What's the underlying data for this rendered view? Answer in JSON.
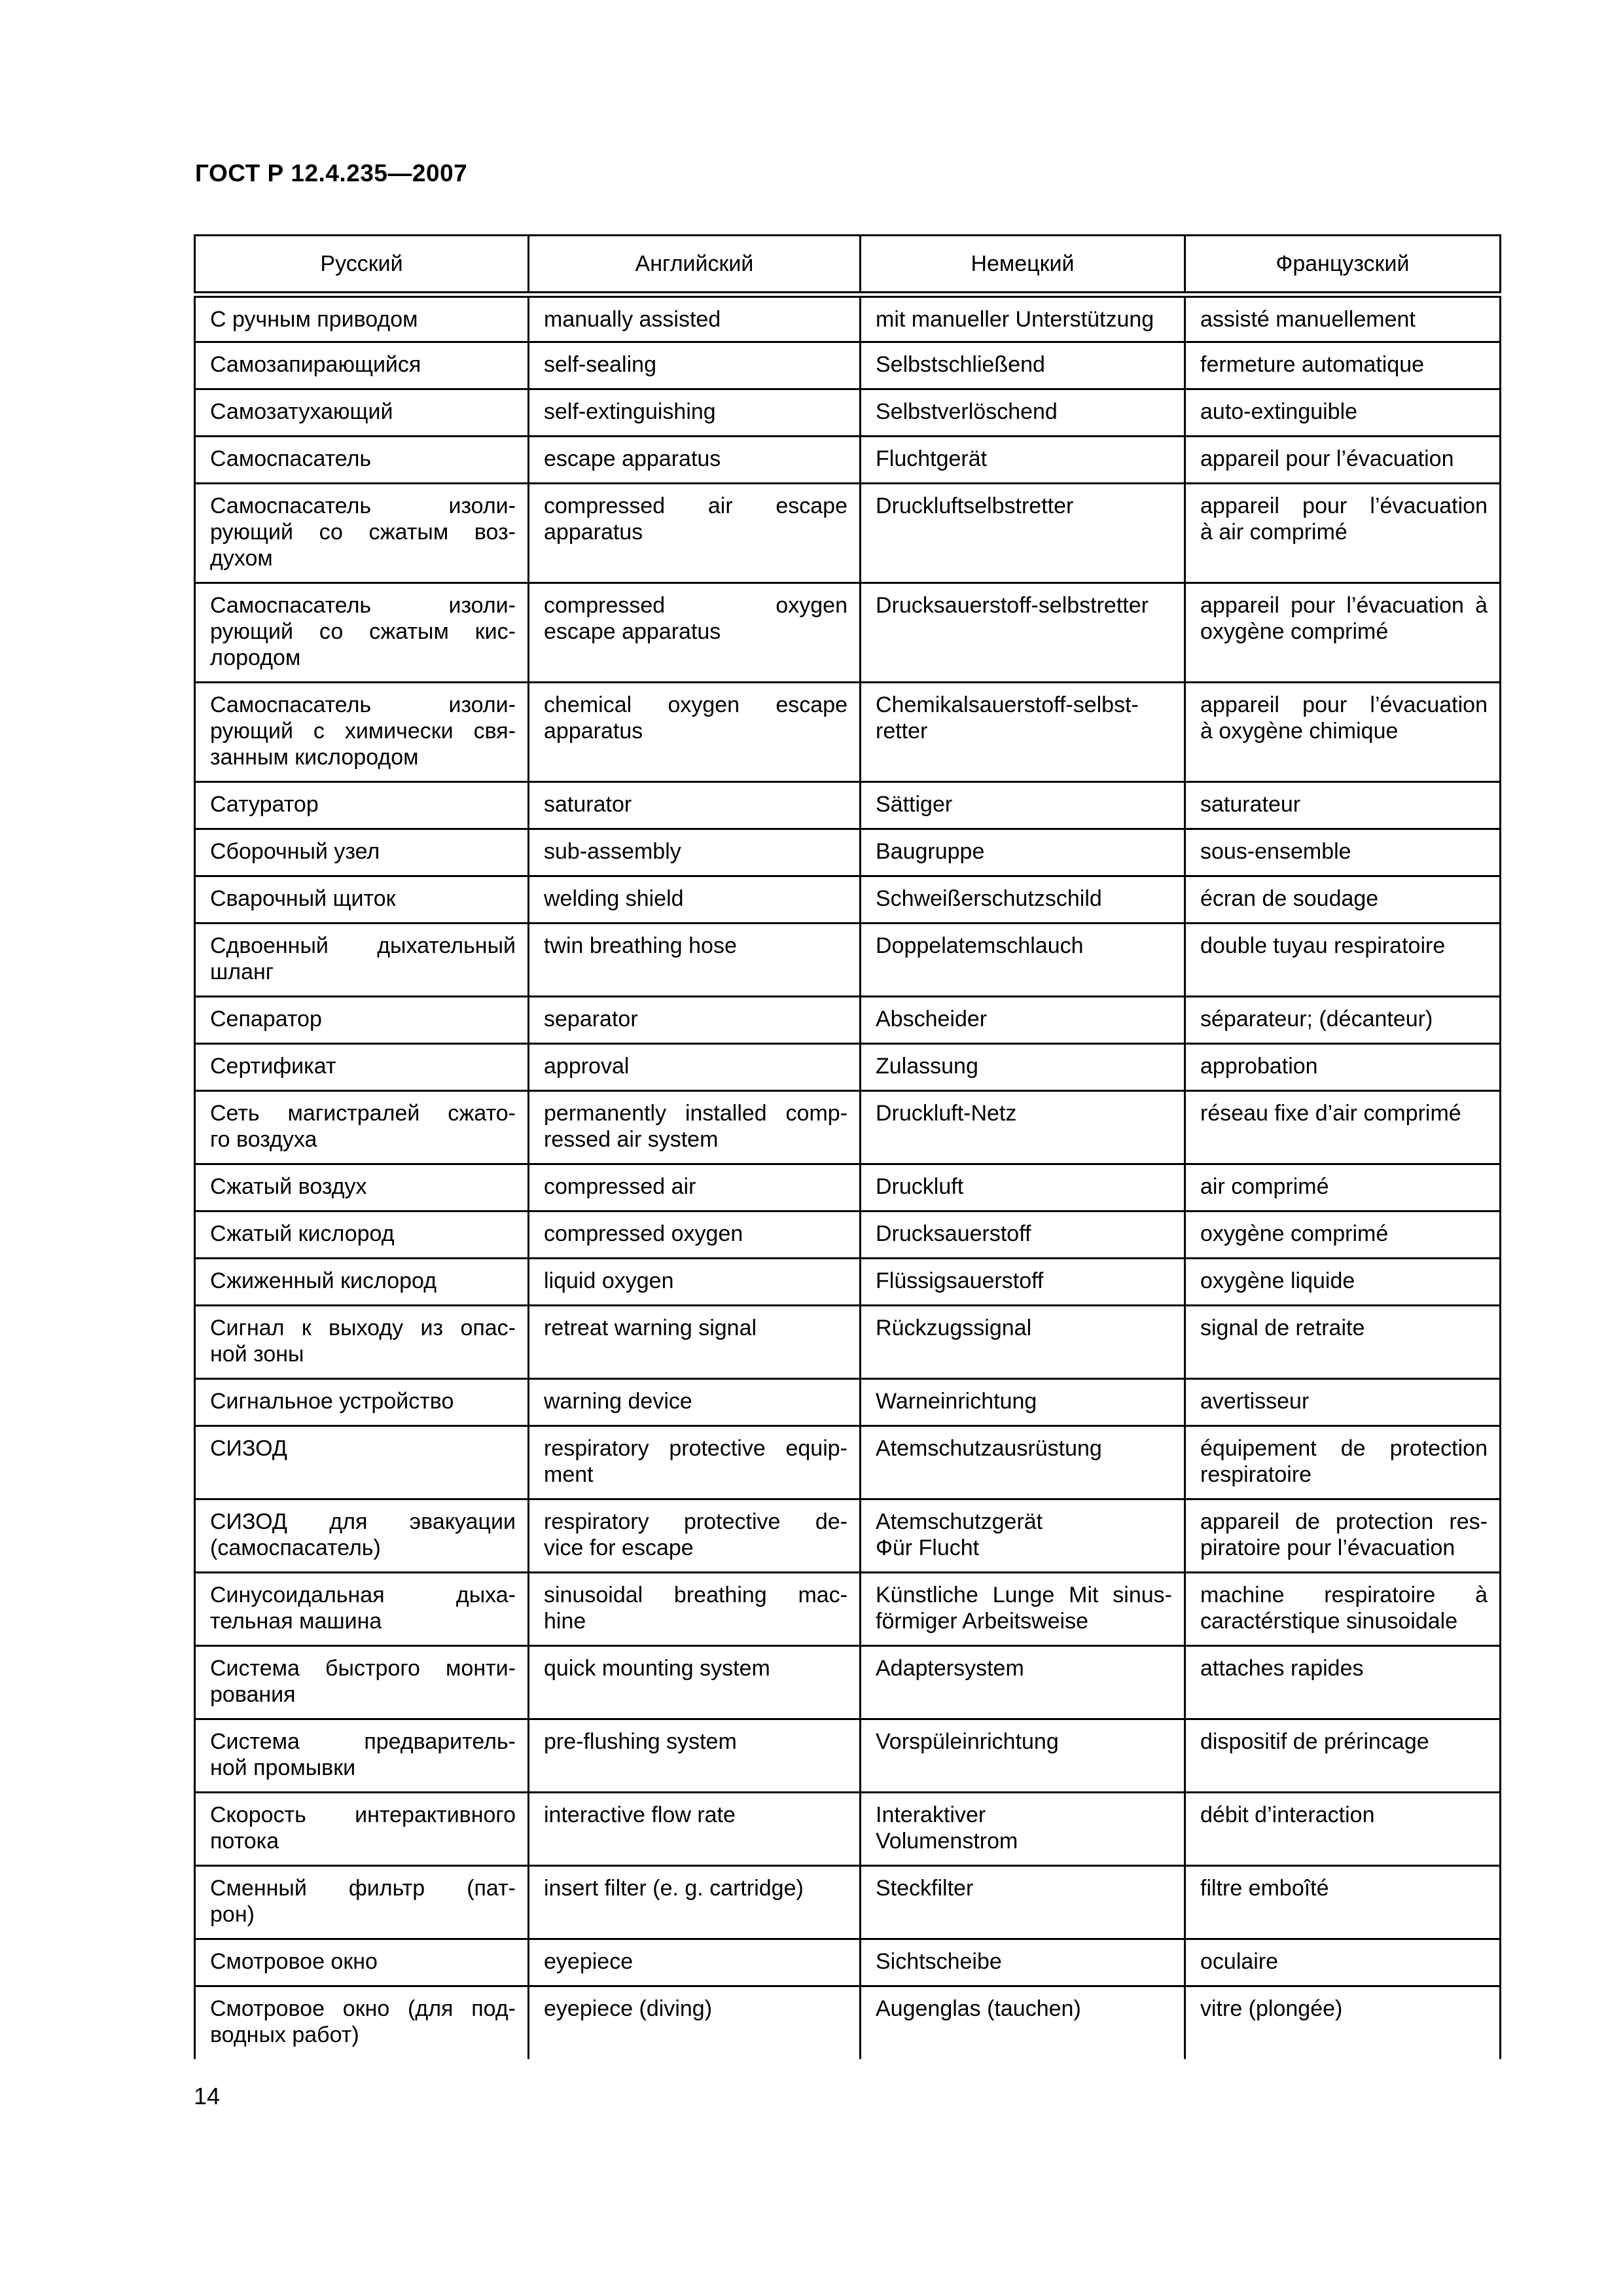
{
  "page": {
    "title": "ГОСТ Р 12.4.235—2007",
    "number": "14"
  },
  "table": {
    "headers": [
      "Русский",
      "Английский",
      "Немецкий",
      "Французский"
    ],
    "rows": [
      [
        "С ручным приводом",
        "manually assisted",
        "mit manueller Unterstützung",
        "assisté manuellement"
      ],
      [
        "Самозапирающийся",
        "self-sealing",
        "Selbstschließend",
        "fermeture automatique"
      ],
      [
        "Самозатухающий",
        "self-extinguishing",
        "Selbstverlöschend",
        "auto-extinguible"
      ],
      [
        "Самоспасатель",
        "escape apparatus",
        "Fluchtgerät",
        "appareil pour l’évacuation"
      ],
      [
        "Самоспасатель изоли-\nрующий со сжатым воз-\nдухом",
        "compressed air escape\napparatus",
        "Druckluftselbstretter",
        "appareil pour l’évacuation\nà air comprimé"
      ],
      [
        "Самоспасатель изоли-\nрующий со сжатым кис-\nлородом",
        "compressed oxygen\nescape apparatus",
        "Drucksauerstoff-selbstretter",
        "appareil pour l’évacuation à\noxygène comprimé"
      ],
      [
        "Самоспасатель изоли-\nрующий с химически свя-\nзанным кислородом",
        "chemical oxygen escape\napparatus",
        "Chemikalsauerstoff-selbst-\nretter",
        "appareil pour l’évacuation\nà oxygène chimique"
      ],
      [
        "Сатуратор",
        "saturator",
        "Sättiger",
        "saturateur"
      ],
      [
        "Сборочный узел",
        "sub-assembly",
        "Baugruppe",
        "sous-ensemble"
      ],
      [
        "Сварочный щиток",
        "welding shield",
        "Schweißerschutzschild",
        "écran de soudage"
      ],
      [
        "Сдвоенный дыхательный\nшланг",
        "twin breathing hose",
        "Doppelatemschlauch",
        "double tuyau respiratoire"
      ],
      [
        "Сепаратор",
        "separator",
        "Abscheider",
        "séparateur; (décanteur)"
      ],
      [
        "Сертификат",
        "approval",
        "Zulassung",
        "approbation"
      ],
      [
        "Сеть магистралей сжато-\nго воздуха",
        "permanently installed comp-\nressed air system",
        "Druckluft-Netz",
        "réseau fixe d’air comprimé"
      ],
      [
        "Сжатый воздух",
        "compressed air",
        "Druckluft",
        "air comprimé"
      ],
      [
        "Сжатый кислород",
        "compressed oxygen",
        "Drucksauerstoff",
        "oxygène comprimé"
      ],
      [
        "Сжиженный кислород",
        "liquid oxygen",
        "Flüssigsauerstoff",
        "oxygène liquide"
      ],
      [
        "Сигнал к выходу из опас-\nной зоны",
        "retreat warning signal",
        "Rückzugssignal",
        "signal de retraite"
      ],
      [
        "Сигнальное устройство",
        "warning device",
        "Warneinrichtung",
        "avertisseur"
      ],
      [
        "СИЗОД",
        "respiratory protective equip-\nment",
        "Atemschutzausrüstung",
        "équipement de protection\nrespiratoire"
      ],
      [
        "СИЗОД для эвакуации\n(самоспасатель)",
        "respiratory protective de-\nvice for escape",
        "Atemschutzgerät\nФür Flucht",
        "appareil de protection res-\npiratoire pour l’évacuation"
      ],
      [
        "Синусоидальная дыха-\nтельная машина",
        "sinusoidal breathing mac-\nhine",
        "Künstliche Lunge Mit sinus-\nförmiger Arbeitsweise",
        "machine respiratoire à\ncaractérstique sinusoidale"
      ],
      [
        "Система быстрого монти-\nрования",
        "quick mounting system",
        "Adaptersystem",
        "attaches rapides"
      ],
      [
        "Система предваритель-\nной промывки",
        "pre-flushing system",
        "Vorspüleinrichtung",
        "dispositif de prérincage"
      ],
      [
        "Скорость интерактивного\nпотока",
        "interactive flow rate",
        "Interaktiver\nVolumenstrom",
        "débit d’interaction"
      ],
      [
        "Сменный фильтр (пат-\nрон)",
        "insert filter (e. g. cartridge)",
        "Steckfilter",
        "filtre emboîté"
      ],
      [
        "Смотровое окно",
        "eyepiece",
        "Sichtscheibe",
        "oculaire"
      ],
      [
        "Смотровое окно (для под-\nводных работ)",
        "eyepiece (diving)",
        "Augenglas (tauchen)",
        "vitre (plongée)"
      ]
    ]
  }
}
